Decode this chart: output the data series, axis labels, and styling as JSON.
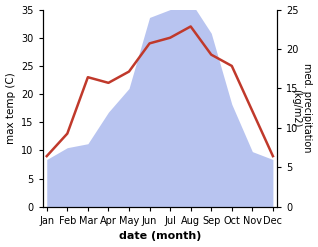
{
  "months": [
    "Jan",
    "Feb",
    "Mar",
    "Apr",
    "May",
    "Jun",
    "Jul",
    "Aug",
    "Sep",
    "Oct",
    "Nov",
    "Dec"
  ],
  "temperature": [
    9,
    13,
    23,
    22,
    24,
    29,
    30,
    32,
    27,
    25,
    17,
    9
  ],
  "precipitation": [
    6,
    7.5,
    8,
    12,
    15,
    24,
    25,
    26,
    22,
    13,
    7,
    6
  ],
  "temp_color": "#c0392b",
  "precip_fill_color": "#b8c4f0",
  "xlabel": "date (month)",
  "ylabel_left": "max temp (C)",
  "ylabel_right": "med. precipitation\n(kg/m2)",
  "ylim_left": [
    0,
    35
  ],
  "ylim_right": [
    0,
    25
  ],
  "yticks_left": [
    0,
    5,
    10,
    15,
    20,
    25,
    30,
    35
  ],
  "yticks_right": [
    0,
    5,
    10,
    15,
    20,
    25
  ],
  "background_color": "#ffffff",
  "line_width": 1.8
}
